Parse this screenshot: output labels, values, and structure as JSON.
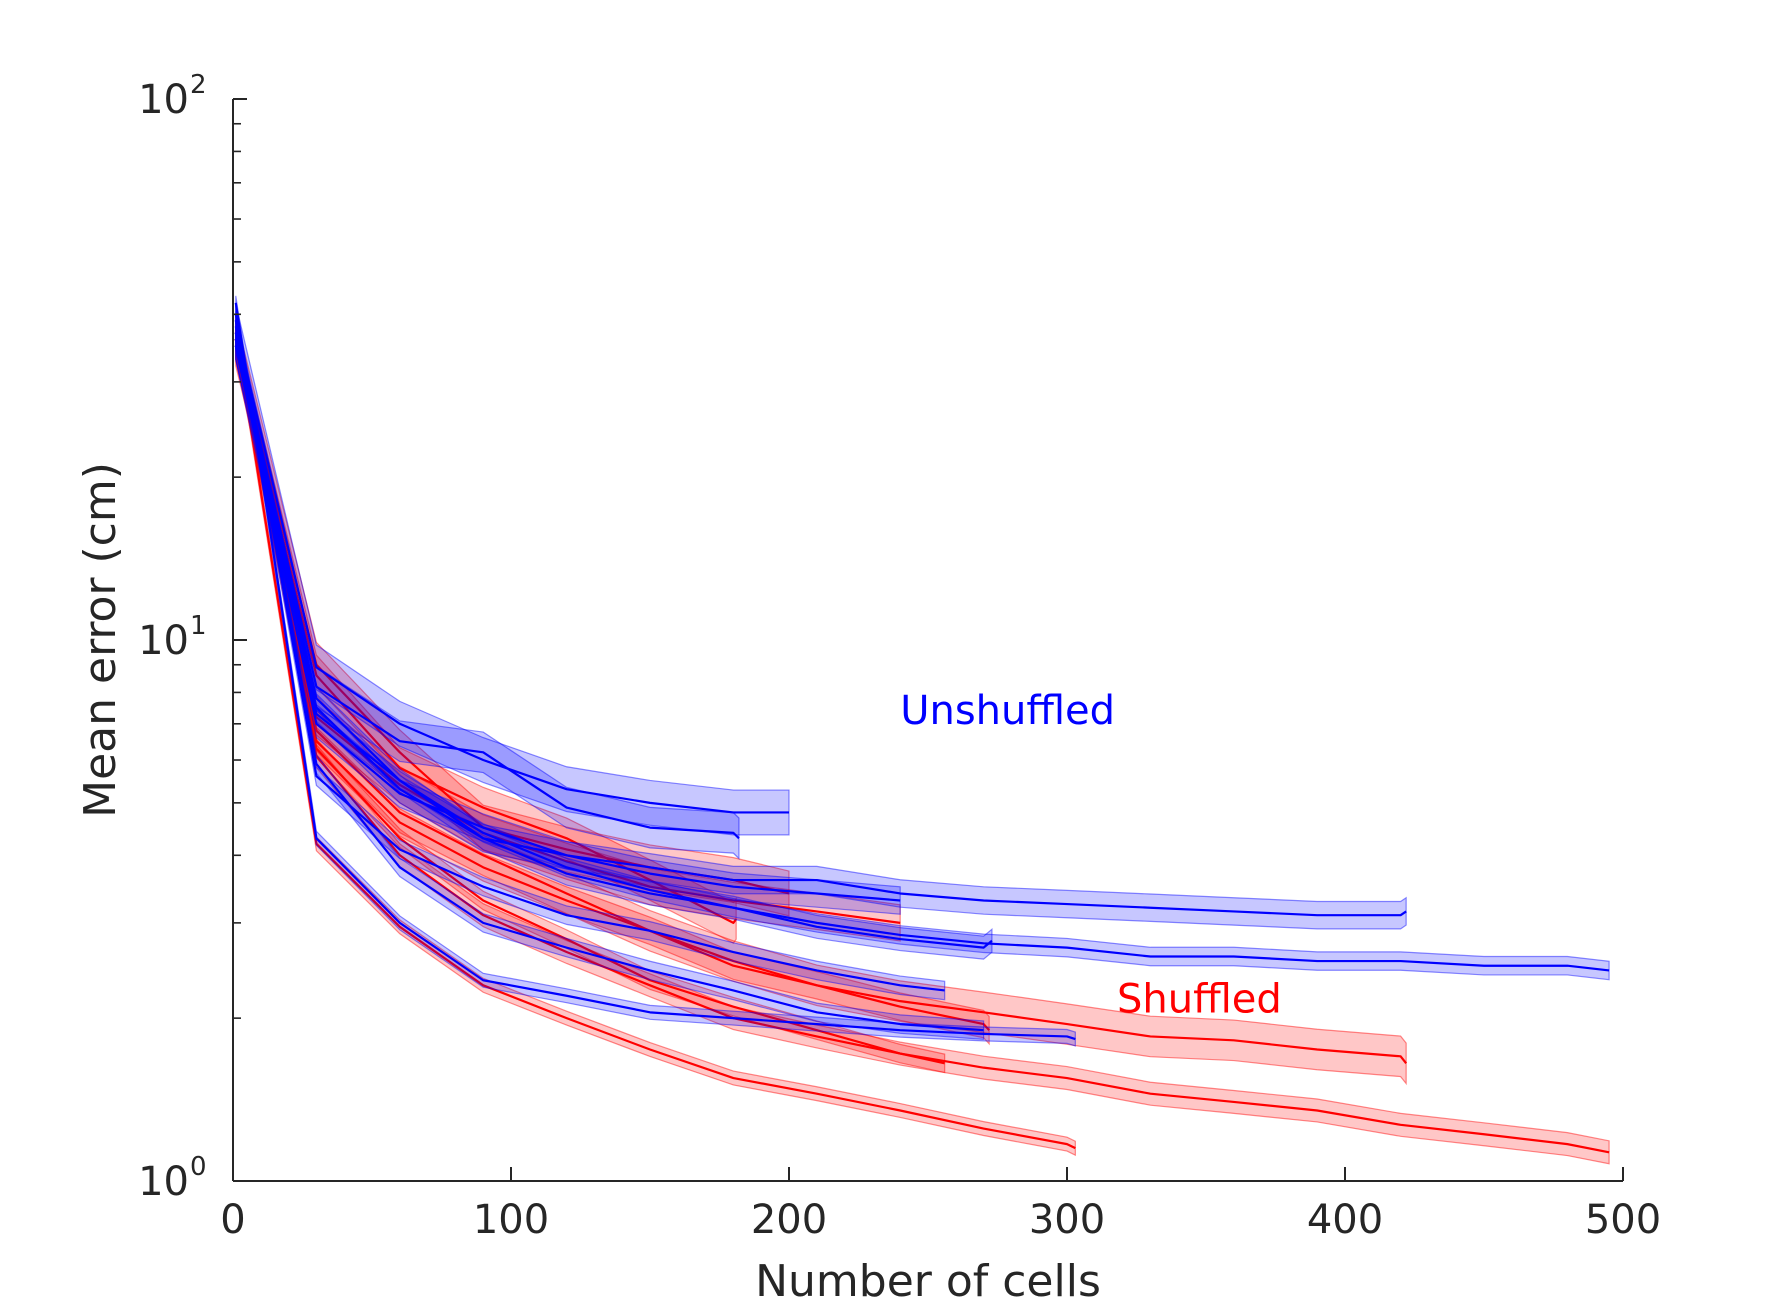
{
  "chart_data": {
    "type": "line",
    "title": "",
    "xlabel": "Number of cells",
    "ylabel": "Mean error (cm)",
    "xlim": [
      0,
      500
    ],
    "ylim": [
      1,
      100
    ],
    "yscale": "log",
    "grid": false,
    "xticks": [
      {
        "value": 0,
        "label": "0"
      },
      {
        "value": 100,
        "label": "100"
      },
      {
        "value": 200,
        "label": "200"
      },
      {
        "value": 300,
        "label": "300"
      },
      {
        "value": 400,
        "label": "400"
      },
      {
        "value": 500,
        "label": "500"
      }
    ],
    "yticks": [
      {
        "value": 1,
        "base": "10",
        "exp": "0"
      },
      {
        "value": 10,
        "base": "10",
        "exp": "1"
      },
      {
        "value": 100,
        "base": "10",
        "exp": "2"
      }
    ],
    "colors": {
      "unshuffled": "#0000ff",
      "shuffled": "#ff0000"
    },
    "annotations": [
      {
        "text": "Unshuffled",
        "color": "#0000ff",
        "x": 240,
        "y": 7.0
      },
      {
        "text": "Shuffled",
        "color": "#ff0000",
        "x": 318,
        "y": 2.05
      }
    ],
    "series": [
      {
        "group": "unshuffled",
        "x": [
          1,
          30,
          60,
          90,
          120,
          150,
          180,
          200
        ],
        "y": [
          38,
          8.9,
          7.0,
          6.0,
          5.3,
          5.0,
          4.8,
          4.8
        ],
        "band": 0.1
      },
      {
        "group": "unshuffled",
        "x": [
          1,
          30,
          60,
          90,
          120,
          150,
          180,
          182
        ],
        "y": [
          36,
          8.2,
          6.5,
          6.2,
          4.9,
          4.5,
          4.4,
          4.3
        ],
        "band": 0.09
      },
      {
        "group": "unshuffled",
        "x": [
          1,
          30,
          60,
          90,
          120,
          150,
          180,
          210,
          240,
          270,
          300,
          330,
          360,
          390,
          420,
          422
        ],
        "y": [
          35,
          7.5,
          5.3,
          4.3,
          4.0,
          3.8,
          3.6,
          3.6,
          3.4,
          3.3,
          3.25,
          3.2,
          3.15,
          3.1,
          3.1,
          3.15
        ],
        "band": 0.06
      },
      {
        "group": "unshuffled",
        "x": [
          1,
          30,
          60,
          90,
          120,
          150,
          180,
          210,
          240
        ],
        "y": [
          35,
          7.0,
          5.2,
          4.5,
          4.0,
          3.7,
          3.5,
          3.4,
          3.3
        ],
        "band": 0.06
      },
      {
        "group": "unshuffled",
        "x": [
          1,
          30,
          60,
          90,
          120,
          150,
          180,
          210,
          240,
          270,
          273
        ],
        "y": [
          36,
          7.8,
          5.5,
          4.3,
          3.7,
          3.4,
          3.2,
          2.95,
          2.8,
          2.7,
          2.78
        ],
        "band": 0.05
      },
      {
        "group": "unshuffled",
        "x": [
          1,
          30,
          60,
          90,
          120,
          150,
          180,
          210,
          240,
          270,
          300,
          330,
          360,
          390,
          420,
          450,
          480,
          495
        ],
        "y": [
          37,
          7.3,
          5.5,
          4.4,
          3.8,
          3.45,
          3.2,
          3.0,
          2.85,
          2.75,
          2.7,
          2.6,
          2.6,
          2.55,
          2.55,
          2.5,
          2.5,
          2.45
        ],
        "band": 0.04
      },
      {
        "group": "unshuffled",
        "x": [
          1,
          30,
          60,
          90,
          120,
          150,
          180,
          210,
          240,
          256
        ],
        "y": [
          39,
          5.6,
          4.1,
          3.5,
          3.1,
          2.9,
          2.65,
          2.45,
          2.3,
          2.25
        ],
        "band": 0.04
      },
      {
        "group": "unshuffled",
        "x": [
          1,
          30,
          60,
          90,
          120,
          150,
          180,
          210,
          240,
          270
        ],
        "y": [
          40,
          5.9,
          3.8,
          3.0,
          2.7,
          2.45,
          2.25,
          2.05,
          1.95,
          1.9
        ],
        "band": 0.04
      },
      {
        "group": "unshuffled",
        "x": [
          1,
          30,
          60,
          90,
          120,
          150,
          180,
          210,
          240,
          270,
          300,
          303
        ],
        "y": [
          42,
          4.3,
          3.0,
          2.35,
          2.2,
          2.05,
          2.0,
          1.95,
          1.9,
          1.87,
          1.85,
          1.83
        ],
        "band": 0.03
      },
      {
        "group": "shuffled",
        "x": [
          1,
          30,
          60,
          90,
          120,
          150,
          180,
          200
        ],
        "y": [
          36,
          9.0,
          6.2,
          4.5,
          4.1,
          3.8,
          3.6,
          3.4
        ],
        "band": 0.1
      },
      {
        "group": "shuffled",
        "x": [
          1,
          30,
          60,
          90,
          120,
          150,
          180,
          181
        ],
        "y": [
          35,
          8.6,
          5.8,
          4.9,
          4.3,
          3.6,
          3.0,
          3.05
        ],
        "band": 0.09
      },
      {
        "group": "shuffled",
        "x": [
          1,
          30,
          60,
          90,
          120,
          150,
          180,
          210,
          240
        ],
        "y": [
          36,
          7.2,
          5.4,
          4.4,
          3.9,
          3.5,
          3.3,
          3.15,
          3.0
        ],
        "band": 0.08
      },
      {
        "group": "shuffled",
        "x": [
          1,
          30,
          60,
          90,
          120,
          150,
          180,
          210,
          240,
          270,
          300,
          330,
          360,
          390,
          420,
          422
        ],
        "y": [
          36,
          6.8,
          4.8,
          4.0,
          3.4,
          2.9,
          2.55,
          2.3,
          2.15,
          2.05,
          1.95,
          1.85,
          1.82,
          1.75,
          1.7,
          1.65
        ],
        "band": 0.09
      },
      {
        "group": "shuffled",
        "x": [
          1,
          30,
          60,
          90,
          120,
          150,
          180,
          210,
          240,
          270,
          272
        ],
        "y": [
          36,
          6.5,
          4.6,
          3.8,
          3.3,
          2.9,
          2.5,
          2.3,
          2.1,
          1.95,
          1.9
        ],
        "band": 0.06
      },
      {
        "group": "shuffled",
        "x": [
          1,
          30,
          60,
          90,
          120,
          150,
          180,
          210,
          240,
          256
        ],
        "y": [
          36,
          6.3,
          4.3,
          3.3,
          2.8,
          2.35,
          2.1,
          1.9,
          1.72,
          1.65
        ],
        "band": 0.04
      },
      {
        "group": "shuffled",
        "x": [
          1,
          30,
          60,
          90,
          120,
          150,
          180,
          210,
          240,
          270,
          300,
          330,
          360,
          390,
          420,
          450,
          480,
          495
        ],
        "y": [
          36,
          6.1,
          4.0,
          3.1,
          2.65,
          2.3,
          2.0,
          1.85,
          1.72,
          1.62,
          1.55,
          1.45,
          1.4,
          1.35,
          1.27,
          1.22,
          1.17,
          1.13
        ],
        "band": 0.05
      },
      {
        "group": "shuffled",
        "x": [
          1,
          30,
          60,
          90,
          120,
          150,
          180,
          210,
          240,
          270,
          300,
          303
        ],
        "y": [
          37,
          4.2,
          2.95,
          2.3,
          2.0,
          1.75,
          1.55,
          1.45,
          1.35,
          1.25,
          1.17,
          1.15
        ],
        "band": 0.03
      }
    ]
  }
}
